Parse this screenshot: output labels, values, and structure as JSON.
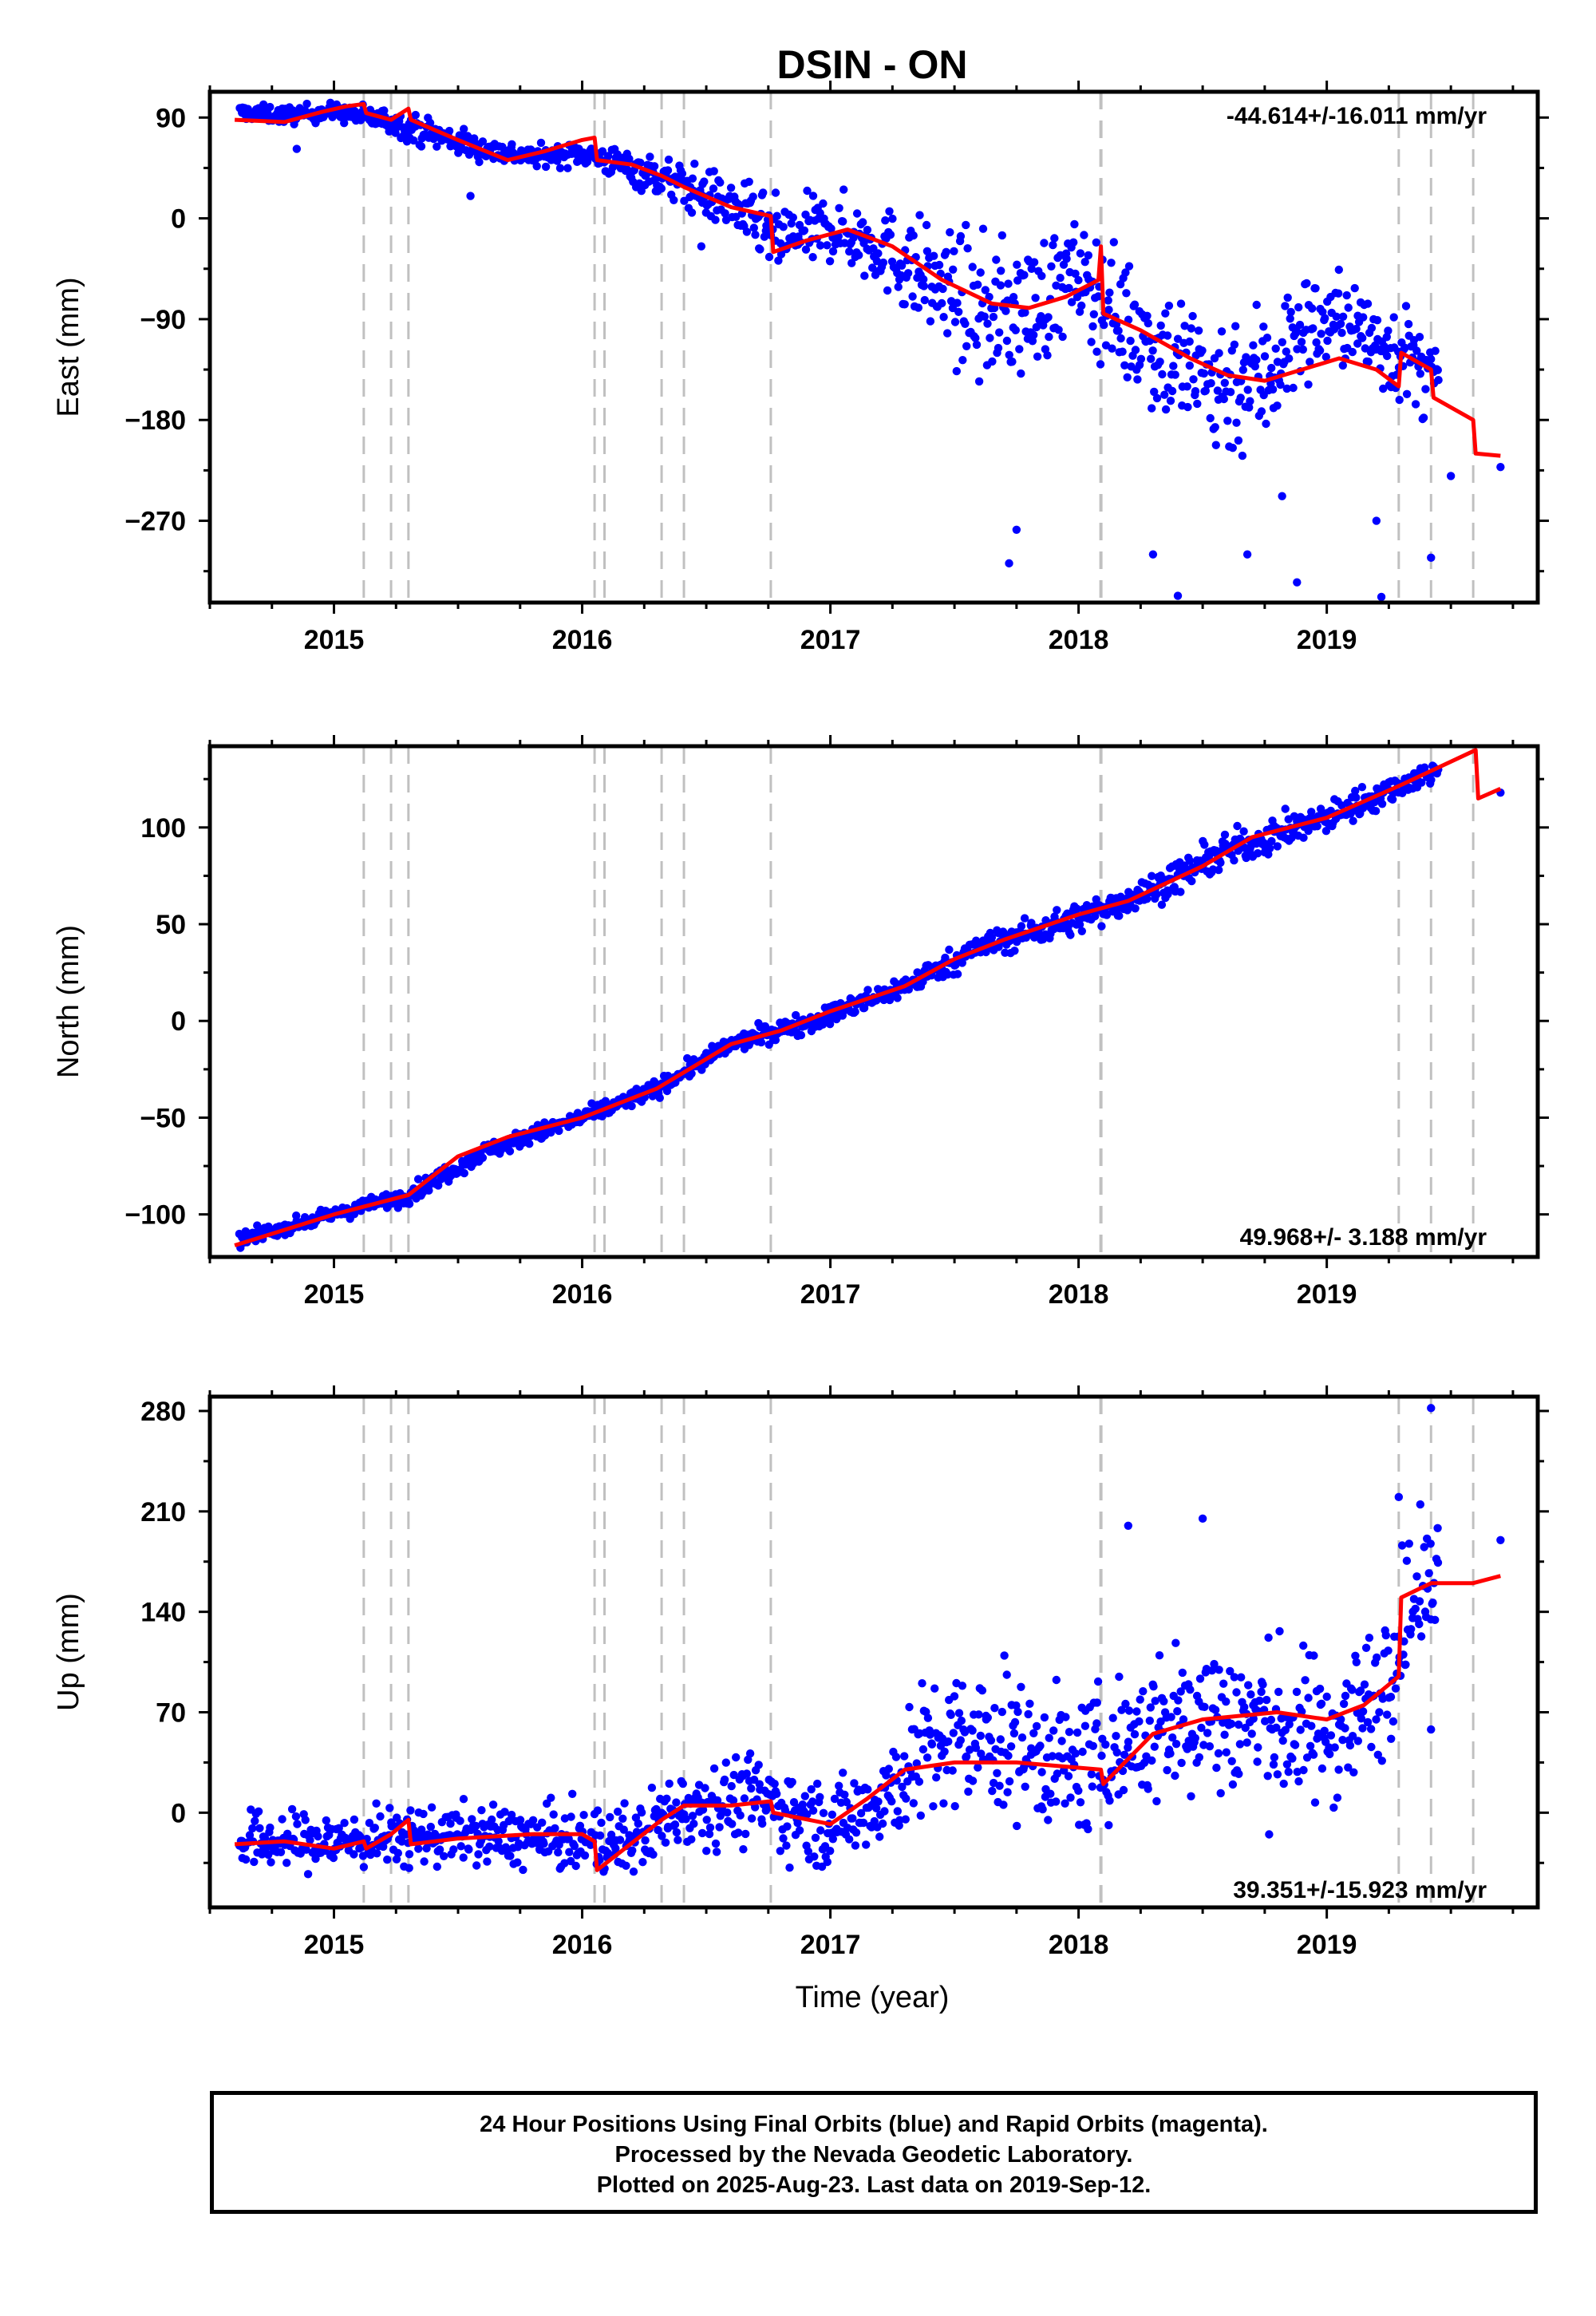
{
  "title": "DSIN - ON",
  "xlabel": "Time (year)",
  "footer": {
    "line1": "24 Hour Positions Using Final Orbits (blue) and Rapid Orbits (magenta).",
    "line2": "Processed by the Nevada Geodetic Laboratory.",
    "line3": "Plotted on 2025-Aug-23. Last data on 2019-Sep-12."
  },
  "colors": {
    "points": "#0000ff",
    "model": "#ff0000",
    "steps": "#c0c0c0",
    "frame": "#000000"
  },
  "chart_data": [
    {
      "type": "scatter",
      "panel": "east",
      "ylabel": "East (mm)",
      "rate_label": "-44.614+/-16.011 mm/yr",
      "xlim": [
        2014.5,
        2019.85
      ],
      "ylim": [
        -343,
        113
      ],
      "xticks": [
        2015,
        2016,
        2017,
        2018,
        2019
      ],
      "yticks": [
        90,
        0,
        -90,
        -180,
        -270
      ],
      "ytick_labels": [
        "90",
        "0",
        "−90",
        "−180",
        "−270"
      ],
      "step_epochs": [
        2015.12,
        2015.23,
        2015.3,
        2016.05,
        2016.09,
        2016.32,
        2016.41,
        2016.76,
        2018.09,
        2019.29,
        2019.42,
        2019.59
      ],
      "model_line": [
        [
          2014.6,
          88
        ],
        [
          2014.8,
          86
        ],
        [
          2014.95,
          95
        ],
        [
          2015.05,
          100
        ],
        [
          2015.12,
          102
        ],
        [
          2015.13,
          94
        ],
        [
          2015.23,
          88
        ],
        [
          2015.3,
          98
        ],
        [
          2015.31,
          88
        ],
        [
          2015.5,
          70
        ],
        [
          2015.7,
          52
        ],
        [
          2015.85,
          60
        ],
        [
          2016.0,
          70
        ],
        [
          2016.05,
          72
        ],
        [
          2016.06,
          52
        ],
        [
          2016.2,
          48
        ],
        [
          2016.32,
          38
        ],
        [
          2016.41,
          28
        ],
        [
          2016.6,
          10
        ],
        [
          2016.76,
          2
        ],
        [
          2016.77,
          -30
        ],
        [
          2016.9,
          -20
        ],
        [
          2017.07,
          -10
        ],
        [
          2017.25,
          -25
        ],
        [
          2017.45,
          -55
        ],
        [
          2017.65,
          -76
        ],
        [
          2017.8,
          -80
        ],
        [
          2017.95,
          -70
        ],
        [
          2018.08,
          -55
        ],
        [
          2018.09,
          -25
        ],
        [
          2018.1,
          -85
        ],
        [
          2018.25,
          -100
        ],
        [
          2018.45,
          -125
        ],
        [
          2018.6,
          -140
        ],
        [
          2018.75,
          -145
        ],
        [
          2018.9,
          -135
        ],
        [
          2019.05,
          -125
        ],
        [
          2019.2,
          -135
        ],
        [
          2019.29,
          -150
        ],
        [
          2019.3,
          -120
        ],
        [
          2019.42,
          -135
        ],
        [
          2019.43,
          -160
        ],
        [
          2019.59,
          -180
        ],
        [
          2019.6,
          -210
        ],
        [
          2019.7,
          -212
        ]
      ],
      "trend_envelope": [
        [
          2014.62,
          95,
          6
        ],
        [
          2014.8,
          92,
          7
        ],
        [
          2015.0,
          95,
          7
        ],
        [
          2015.2,
          88,
          9
        ],
        [
          2015.4,
          75,
          12
        ],
        [
          2015.6,
          62,
          10
        ],
        [
          2015.8,
          55,
          8
        ],
        [
          2016.0,
          58,
          9
        ],
        [
          2016.2,
          45,
          14
        ],
        [
          2016.4,
          30,
          18
        ],
        [
          2016.6,
          12,
          22
        ],
        [
          2016.8,
          -20,
          30
        ],
        [
          2017.0,
          -8,
          26
        ],
        [
          2017.2,
          -25,
          32
        ],
        [
          2017.4,
          -55,
          45
        ],
        [
          2017.6,
          -85,
          55
        ],
        [
          2017.8,
          -80,
          55
        ],
        [
          2018.0,
          -50,
          40
        ],
        [
          2018.15,
          -85,
          50
        ],
        [
          2018.35,
          -120,
          55
        ],
        [
          2018.55,
          -150,
          60
        ],
        [
          2018.75,
          -140,
          60
        ],
        [
          2018.9,
          -100,
          45
        ],
        [
          2019.05,
          -90,
          35
        ],
        [
          2019.2,
          -110,
          40
        ],
        [
          2019.3,
          -120,
          40
        ],
        [
          2019.45,
          -150,
          35
        ]
      ],
      "outliers": [
        [
          2017.72,
          -308
        ],
        [
          2017.75,
          -278
        ],
        [
          2018.3,
          -300
        ],
        [
          2018.4,
          -337
        ],
        [
          2018.68,
          -300
        ],
        [
          2018.82,
          -248
        ],
        [
          2018.88,
          -325
        ],
        [
          2019.2,
          -270
        ],
        [
          2019.22,
          -338
        ],
        [
          2019.42,
          -303
        ],
        [
          2019.5,
          -230
        ],
        [
          2019.7,
          -222
        ],
        [
          2014.85,
          62
        ],
        [
          2015.55,
          20
        ],
        [
          2016.48,
          -25
        ]
      ]
    },
    {
      "type": "scatter",
      "panel": "north",
      "ylabel": "North (mm)",
      "rate_label": "49.968+/- 3.188 mm/yr",
      "xlim": [
        2014.5,
        2019.85
      ],
      "ylim": [
        -122,
        142
      ],
      "xticks": [
        2015,
        2016,
        2017,
        2018,
        2019
      ],
      "yticks": [
        100,
        50,
        0,
        -50,
        -100
      ],
      "ytick_labels": [
        "100",
        "50",
        "0",
        "−50",
        "−100"
      ],
      "step_epochs": [
        2015.12,
        2015.23,
        2015.3,
        2016.05,
        2016.09,
        2016.32,
        2016.41,
        2016.76,
        2018.09,
        2019.29,
        2019.42,
        2019.59
      ],
      "model_line": [
        [
          2014.6,
          -116
        ],
        [
          2014.8,
          -108
        ],
        [
          2015.0,
          -100
        ],
        [
          2015.3,
          -90
        ],
        [
          2015.5,
          -70
        ],
        [
          2015.7,
          -60
        ],
        [
          2016.0,
          -50
        ],
        [
          2016.3,
          -35
        ],
        [
          2016.6,
          -12
        ],
        [
          2016.8,
          -5
        ],
        [
          2017.0,
          5
        ],
        [
          2017.3,
          18
        ],
        [
          2017.5,
          32
        ],
        [
          2017.7,
          42
        ],
        [
          2018.0,
          55
        ],
        [
          2018.2,
          62
        ],
        [
          2018.5,
          80
        ],
        [
          2018.7,
          95
        ],
        [
          2019.0,
          105
        ],
        [
          2019.3,
          122
        ],
        [
          2019.6,
          140
        ],
        [
          2019.61,
          115
        ],
        [
          2019.7,
          120
        ]
      ],
      "trend_envelope": [
        [
          2014.62,
          -113,
          3
        ],
        [
          2015.0,
          -100,
          3
        ],
        [
          2015.3,
          -90,
          4
        ],
        [
          2015.6,
          -68,
          4
        ],
        [
          2016.0,
          -50,
          4
        ],
        [
          2016.3,
          -35,
          4
        ],
        [
          2016.6,
          -12,
          4
        ],
        [
          2017.0,
          3,
          5
        ],
        [
          2017.3,
          18,
          5
        ],
        [
          2017.6,
          38,
          6
        ],
        [
          2018.0,
          53,
          7
        ],
        [
          2018.3,
          68,
          7
        ],
        [
          2018.6,
          88,
          8
        ],
        [
          2019.0,
          105,
          7
        ],
        [
          2019.3,
          122,
          6
        ],
        [
          2019.45,
          130,
          5
        ]
      ],
      "outliers": [
        [
          2019.7,
          118
        ]
      ]
    },
    {
      "type": "scatter",
      "panel": "up",
      "ylabel": "Up (mm)",
      "rate_label": "39.351+/-15.923 mm/yr",
      "xlim": [
        2014.5,
        2019.85
      ],
      "ylim": [
        -66,
        290
      ],
      "xticks": [
        2015,
        2016,
        2017,
        2018,
        2019
      ],
      "yticks": [
        280,
        210,
        140,
        70,
        0
      ],
      "ytick_labels": [
        "280",
        "210",
        "140",
        "70",
        "0"
      ],
      "step_epochs": [
        2015.12,
        2015.23,
        2015.3,
        2016.05,
        2016.09,
        2016.32,
        2016.41,
        2016.76,
        2018.09,
        2019.29,
        2019.42,
        2019.59
      ],
      "model_line": [
        [
          2014.6,
          -22
        ],
        [
          2014.8,
          -20
        ],
        [
          2015.0,
          -25
        ],
        [
          2015.12,
          -20
        ],
        [
          2015.13,
          -25
        ],
        [
          2015.23,
          -15
        ],
        [
          2015.3,
          -5
        ],
        [
          2015.31,
          -22
        ],
        [
          2015.5,
          -18
        ],
        [
          2015.8,
          -15
        ],
        [
          2016.0,
          -15
        ],
        [
          2016.05,
          -20
        ],
        [
          2016.06,
          -40
        ],
        [
          2016.32,
          -5
        ],
        [
          2016.41,
          5
        ],
        [
          2016.6,
          5
        ],
        [
          2016.76,
          8
        ],
        [
          2016.77,
          0
        ],
        [
          2017.0,
          -8
        ],
        [
          2017.15,
          10
        ],
        [
          2017.3,
          30
        ],
        [
          2017.5,
          35
        ],
        [
          2017.75,
          35
        ],
        [
          2018.09,
          30
        ],
        [
          2018.1,
          20
        ],
        [
          2018.3,
          55
        ],
        [
          2018.5,
          65
        ],
        [
          2018.8,
          70
        ],
        [
          2019.0,
          65
        ],
        [
          2019.15,
          75
        ],
        [
          2019.29,
          95
        ],
        [
          2019.3,
          150
        ],
        [
          2019.42,
          160
        ],
        [
          2019.59,
          160
        ],
        [
          2019.7,
          165
        ]
      ],
      "trend_envelope": [
        [
          2014.62,
          -20,
          18
        ],
        [
          2015.0,
          -20,
          18
        ],
        [
          2015.5,
          -15,
          18
        ],
        [
          2016.0,
          -20,
          20
        ],
        [
          2016.2,
          -20,
          22
        ],
        [
          2016.4,
          5,
          25
        ],
        [
          2016.7,
          10,
          28
        ],
        [
          2017.0,
          -10,
          25
        ],
        [
          2017.2,
          10,
          30
        ],
        [
          2017.4,
          45,
          45
        ],
        [
          2017.7,
          50,
          45
        ],
        [
          2018.0,
          30,
          40
        ],
        [
          2018.2,
          50,
          45
        ],
        [
          2018.5,
          70,
          50
        ],
        [
          2018.8,
          60,
          50
        ],
        [
          2019.0,
          55,
          45
        ],
        [
          2019.2,
          80,
          45
        ],
        [
          2019.3,
          130,
          45
        ],
        [
          2019.45,
          170,
          35
        ]
      ],
      "outliers": [
        [
          2019.42,
          282
        ],
        [
          2019.29,
          220
        ],
        [
          2018.5,
          205
        ],
        [
          2018.2,
          200
        ],
        [
          2019.7,
          190
        ],
        [
          2019.42,
          58
        ]
      ]
    }
  ]
}
